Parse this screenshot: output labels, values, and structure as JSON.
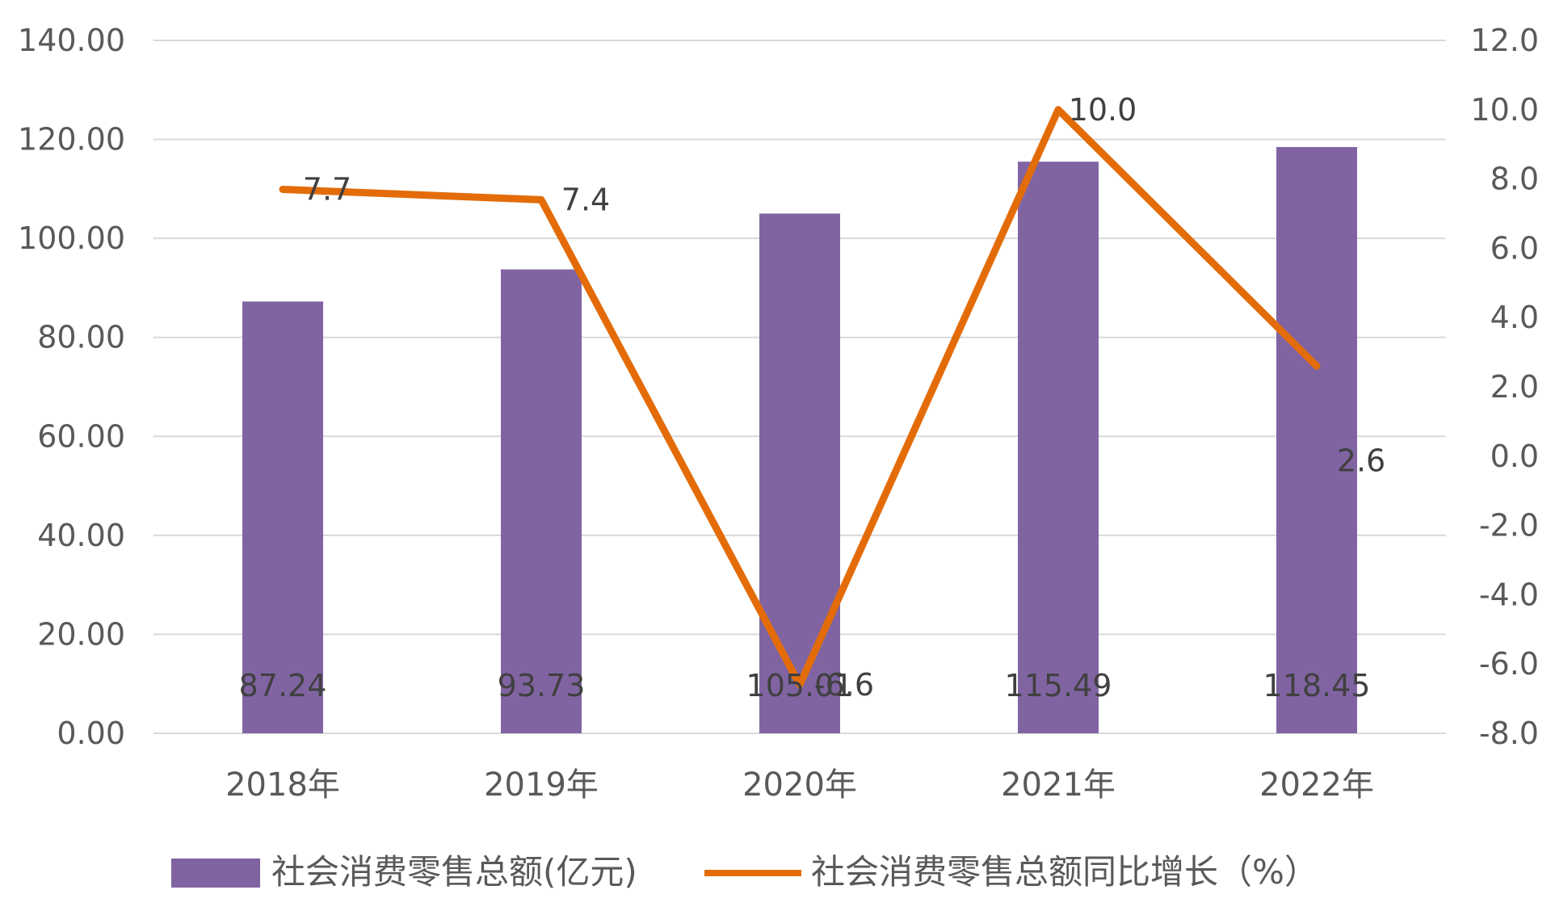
{
  "chart_data": {
    "type": "bar",
    "categories": [
      "2018年",
      "2019年",
      "2020年",
      "2021年",
      "2022年"
    ],
    "series": [
      {
        "name": "社会消费零售总额(亿元)",
        "type": "bar",
        "axis": "left",
        "values": [
          87.24,
          93.73,
          105.01,
          115.49,
          118.45
        ],
        "labels": [
          "87.24",
          "93.73",
          "105.01",
          "115.49",
          "118.45"
        ],
        "color": "#8064a2"
      },
      {
        "name": "社会消费零售总额同比增长（%）",
        "type": "line",
        "axis": "right",
        "values": [
          7.7,
          7.4,
          -6.6,
          10.0,
          2.6
        ],
        "labels": [
          "7.7",
          "7.4",
          "-6.6",
          "10.0",
          "2.6"
        ],
        "color": "#e36c09"
      }
    ],
    "y_left": {
      "min": 0,
      "max": 140,
      "step": 20,
      "tick_labels": [
        "0.00",
        "20.00",
        "40.00",
        "60.00",
        "80.00",
        "100.00",
        "120.00",
        "140.00"
      ]
    },
    "y_right": {
      "min": -8,
      "max": 12,
      "step": 2,
      "tick_labels": [
        "-8.0",
        "-6.0",
        "-4.0",
        "-2.0",
        "0.0",
        "2.0",
        "4.0",
        "6.0",
        "8.0",
        "10.0",
        "12.0"
      ]
    },
    "grid": true,
    "legend_position": "bottom"
  }
}
